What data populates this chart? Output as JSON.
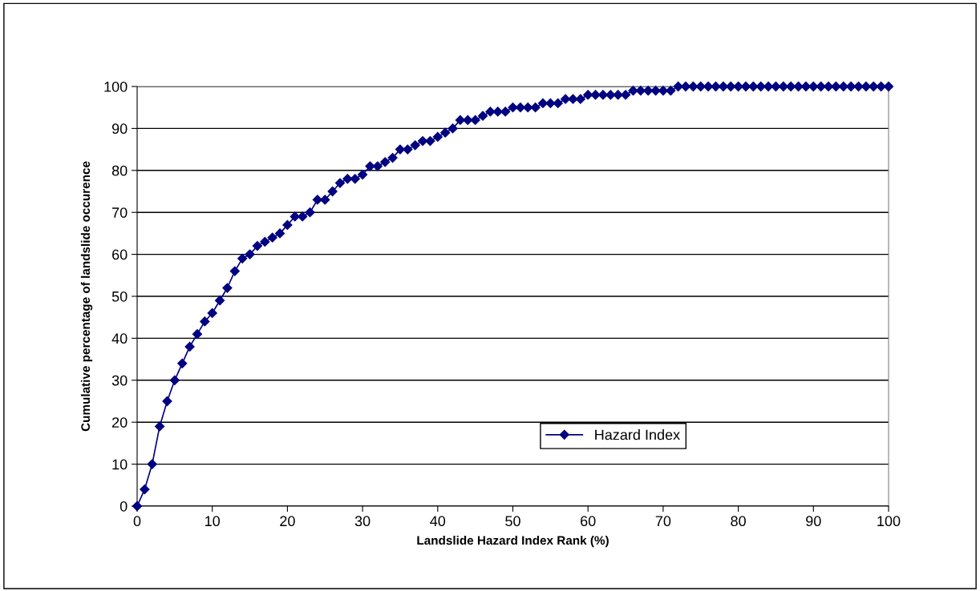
{
  "chart_data": {
    "type": "line",
    "xlabel": "Landslide Hazard Index Rank (%)",
    "ylabel": "Cumulative percentage of landslide occurence",
    "x": [
      0,
      1,
      2,
      3,
      4,
      5,
      6,
      7,
      8,
      9,
      10,
      11,
      12,
      13,
      14,
      15,
      16,
      17,
      18,
      19,
      20,
      21,
      22,
      23,
      24,
      25,
      26,
      27,
      28,
      29,
      30,
      31,
      32,
      33,
      34,
      35,
      36,
      37,
      38,
      39,
      40,
      41,
      42,
      43,
      44,
      45,
      46,
      47,
      48,
      49,
      50,
      51,
      52,
      53,
      54,
      55,
      56,
      57,
      58,
      59,
      60,
      61,
      62,
      63,
      64,
      65,
      66,
      67,
      68,
      69,
      70,
      71,
      72,
      73,
      74,
      75,
      76,
      77,
      78,
      79,
      80,
      81,
      82,
      83,
      84,
      85,
      86,
      87,
      88,
      89,
      90,
      91,
      92,
      93,
      94,
      95,
      96,
      97,
      98,
      99,
      100
    ],
    "series": [
      {
        "name": "Hazard Index",
        "color": "#000080",
        "values": [
          0,
          4,
          10,
          19,
          25,
          30,
          34,
          38,
          41,
          44,
          46,
          49,
          52,
          56,
          59,
          60,
          62,
          63,
          64,
          65,
          67,
          69,
          69,
          70,
          73,
          73,
          75,
          77,
          78,
          78,
          79,
          81,
          81,
          82,
          83,
          85,
          85,
          86,
          87,
          87,
          88,
          89,
          90,
          92,
          92,
          92,
          93,
          94,
          94,
          94,
          95,
          95,
          95,
          95,
          96,
          96,
          96,
          97,
          97,
          97,
          98,
          98,
          98,
          98,
          98,
          98,
          99,
          99,
          99,
          99,
          99,
          99,
          100,
          100,
          100,
          100,
          100,
          100,
          100,
          100,
          100,
          100,
          100,
          100,
          100,
          100,
          100,
          100,
          100,
          100,
          100,
          100,
          100,
          100,
          100,
          100,
          100,
          100,
          100,
          100,
          100
        ]
      }
    ],
    "xlim": [
      0,
      100
    ],
    "ylim": [
      0,
      100
    ],
    "xticks": [
      0,
      10,
      20,
      30,
      40,
      50,
      60,
      70,
      80,
      90,
      100
    ],
    "yticks": [
      0,
      10,
      20,
      30,
      40,
      50,
      60,
      70,
      80,
      90,
      100
    ],
    "grid": "y",
    "legend": "bottom right",
    "marker": "diamond",
    "line_style": "solid"
  }
}
